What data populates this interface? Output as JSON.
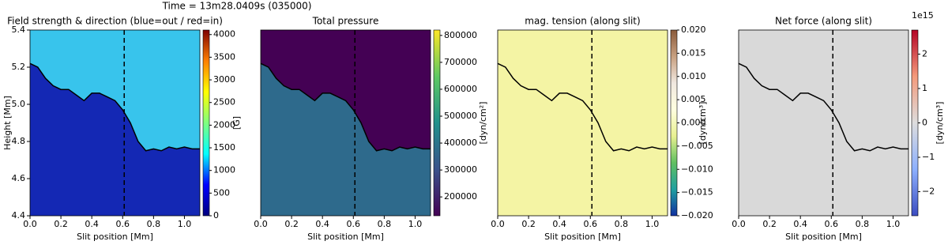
{
  "suptitle": "Time = 13m28.0409s (035000)",
  "chart_data": [
    {
      "type": "heatmap",
      "title": "Field strength & direction (blue=out / red=in)",
      "xlabel": "Slit position [Mm]",
      "ylabel": "Height [Mm]",
      "x": [
        0,
        0.05,
        0.1,
        0.15,
        0.2,
        0.25,
        0.3,
        0.35,
        0.4,
        0.45,
        0.5,
        0.55,
        0.6,
        0.65,
        0.7,
        0.75,
        0.8,
        0.85,
        0.9,
        0.95,
        1.0,
        1.05,
        1.1
      ],
      "series": [
        {
          "color": "#000000",
          "values": [
            5.22,
            5.2,
            5.14,
            5.1,
            5.08,
            5.08,
            5.05,
            5.02,
            5.06,
            5.06,
            5.04,
            5.02,
            4.97,
            4.9,
            4.8,
            4.75,
            4.76,
            4.75,
            4.77,
            4.76,
            4.77,
            4.76,
            4.76
          ]
        }
      ],
      "vline": 0.61,
      "xlim": [
        0,
        1.1
      ],
      "ylim": [
        4.4,
        5.4
      ],
      "xticks": [
        {
          "value": 0,
          "label": "0.0"
        },
        {
          "value": 0.2,
          "label": "0.2"
        },
        {
          "value": 0.4,
          "label": "0.4"
        },
        {
          "value": 0.6,
          "label": "0.6"
        },
        {
          "value": 0.8,
          "label": "0.8"
        },
        {
          "value": 1.0,
          "label": "1.0"
        }
      ],
      "yticks": [
        4.4,
        4.6,
        4.8,
        {
          "value": 5.0,
          "label": "5.0"
        },
        5.2,
        5.4
      ],
      "clim": [
        0,
        4100
      ],
      "cticks": [
        0,
        500,
        1000,
        1500,
        2000,
        2500,
        3000,
        3500,
        4000
      ],
      "clabel": "[G]",
      "colormap": [
        "#00007f",
        "#0000ff",
        "#00ffff",
        "#7fff7f",
        "#ffff00",
        "#ff7f00",
        "#7f0000"
      ],
      "fill_above": "#38c4ec",
      "fill_below": "#1428b4"
    },
    {
      "type": "heatmap",
      "title": "Total pressure",
      "xlabel": "Slit position [Mm]",
      "x": [
        0,
        0.05,
        0.1,
        0.15,
        0.2,
        0.25,
        0.3,
        0.35,
        0.4,
        0.45,
        0.5,
        0.55,
        0.6,
        0.65,
        0.7,
        0.75,
        0.8,
        0.85,
        0.9,
        0.95,
        1.0,
        1.05,
        1.1
      ],
      "series": [
        {
          "color": "#000000",
          "values": [
            5.22,
            5.2,
            5.14,
            5.1,
            5.08,
            5.08,
            5.05,
            5.02,
            5.06,
            5.06,
            5.04,
            5.02,
            4.97,
            4.9,
            4.8,
            4.75,
            4.76,
            4.75,
            4.77,
            4.76,
            4.77,
            4.76,
            4.76
          ]
        }
      ],
      "vline": 0.61,
      "xlim": [
        0,
        1.1
      ],
      "ylim": [
        4.4,
        5.4
      ],
      "xticks": [
        {
          "value": 0,
          "label": "0.0"
        },
        {
          "value": 0.2,
          "label": "0.2"
        },
        {
          "value": 0.4,
          "label": "0.4"
        },
        {
          "value": 0.6,
          "label": "0.6"
        },
        {
          "value": 0.8,
          "label": "0.8"
        },
        {
          "value": 1.0,
          "label": "1.0"
        }
      ],
      "clim": [
        130000,
        820000
      ],
      "cticks": [
        200000,
        300000,
        400000,
        500000,
        600000,
        700000,
        800000
      ],
      "clabel": "[dyn/cm²]",
      "colormap": [
        "#440154",
        "#3b528b",
        "#21918c",
        "#5ec962",
        "#fde725"
      ],
      "fill_above": "#440154",
      "fill_below": "#2e6a8c"
    },
    {
      "type": "heatmap",
      "title": "mag. tension (along slit)",
      "xlabel": "Slit position [Mm]",
      "x": [
        0,
        0.05,
        0.1,
        0.15,
        0.2,
        0.25,
        0.3,
        0.35,
        0.4,
        0.45,
        0.5,
        0.55,
        0.6,
        0.65,
        0.7,
        0.75,
        0.8,
        0.85,
        0.9,
        0.95,
        1.0,
        1.05,
        1.1
      ],
      "series": [
        {
          "color": "#000000",
          "values": [
            5.22,
            5.2,
            5.14,
            5.1,
            5.08,
            5.08,
            5.05,
            5.02,
            5.06,
            5.06,
            5.04,
            5.02,
            4.97,
            4.9,
            4.8,
            4.75,
            4.76,
            4.75,
            4.77,
            4.76,
            4.77,
            4.76,
            4.76
          ]
        }
      ],
      "vline": 0.61,
      "xlim": [
        0,
        1.1
      ],
      "ylim": [
        4.4,
        5.4
      ],
      "xticks": [
        {
          "value": 0,
          "label": "0.0"
        },
        {
          "value": 0.2,
          "label": "0.2"
        },
        {
          "value": 0.4,
          "label": "0.4"
        },
        {
          "value": 0.6,
          "label": "0.6"
        },
        {
          "value": 0.8,
          "label": "0.8"
        },
        {
          "value": 1.0,
          "label": "1.0"
        }
      ],
      "clim": [
        -0.02,
        0.02
      ],
      "cticks": [
        {
          "value": -0.02,
          "label": "−0.020"
        },
        {
          "value": -0.015,
          "label": "−0.015"
        },
        {
          "value": -0.01,
          "label": "−0.010"
        },
        {
          "value": -0.005,
          "label": "−0.005"
        },
        {
          "value": 0,
          "label": "0.000"
        },
        {
          "value": 0.005,
          "label": "0.005"
        },
        {
          "value": 0.01,
          "label": "0.010"
        },
        {
          "value": 0.015,
          "label": "0.015"
        },
        {
          "value": 0.02,
          "label": "0.020"
        }
      ],
      "clabel": "[dyn/cm³]",
      "colormap": [
        "#1030a0",
        "#20a0a0",
        "#60c060",
        "#e8f090",
        "#ffffe0",
        "#f0e8e0",
        "#c8a080",
        "#8a5a3a"
      ],
      "fill_above": "#f4f4a4",
      "fill_below": "#f4f4a4"
    },
    {
      "type": "heatmap",
      "title": "Net force (along slit)",
      "xlabel": "Slit position [Mm]",
      "offset_label": "1e15",
      "x": [
        0,
        0.05,
        0.1,
        0.15,
        0.2,
        0.25,
        0.3,
        0.35,
        0.4,
        0.45,
        0.5,
        0.55,
        0.6,
        0.65,
        0.7,
        0.75,
        0.8,
        0.85,
        0.9,
        0.95,
        1.0,
        1.05,
        1.1
      ],
      "series": [
        {
          "color": "#000000",
          "values": [
            5.22,
            5.2,
            5.14,
            5.1,
            5.08,
            5.08,
            5.05,
            5.02,
            5.06,
            5.06,
            5.04,
            5.02,
            4.97,
            4.9,
            4.8,
            4.75,
            4.76,
            4.75,
            4.77,
            4.76,
            4.77,
            4.76,
            4.76
          ]
        }
      ],
      "vline": 0.61,
      "xlim": [
        0,
        1.1
      ],
      "ylim": [
        4.4,
        5.4
      ],
      "xticks": [
        {
          "value": 0,
          "label": "0.0"
        },
        {
          "value": 0.2,
          "label": "0.2"
        },
        {
          "value": 0.4,
          "label": "0.4"
        },
        {
          "value": 0.6,
          "label": "0.6"
        },
        {
          "value": 0.8,
          "label": "0.8"
        },
        {
          "value": 1.0,
          "label": "1.0"
        }
      ],
      "clim": [
        -2.7,
        2.7
      ],
      "cticks": [
        {
          "value": -2,
          "label": "−2"
        },
        {
          "value": -1,
          "label": "−1"
        },
        0,
        1,
        2
      ],
      "clabel": "[dyn/cm³]",
      "colormap": [
        "#3b4cc0",
        "#8db0fe",
        "#dddddd",
        "#f49a7b",
        "#b40426"
      ],
      "fill_above": "#d9d9d9",
      "fill_below": "#d9d9d9"
    }
  ]
}
